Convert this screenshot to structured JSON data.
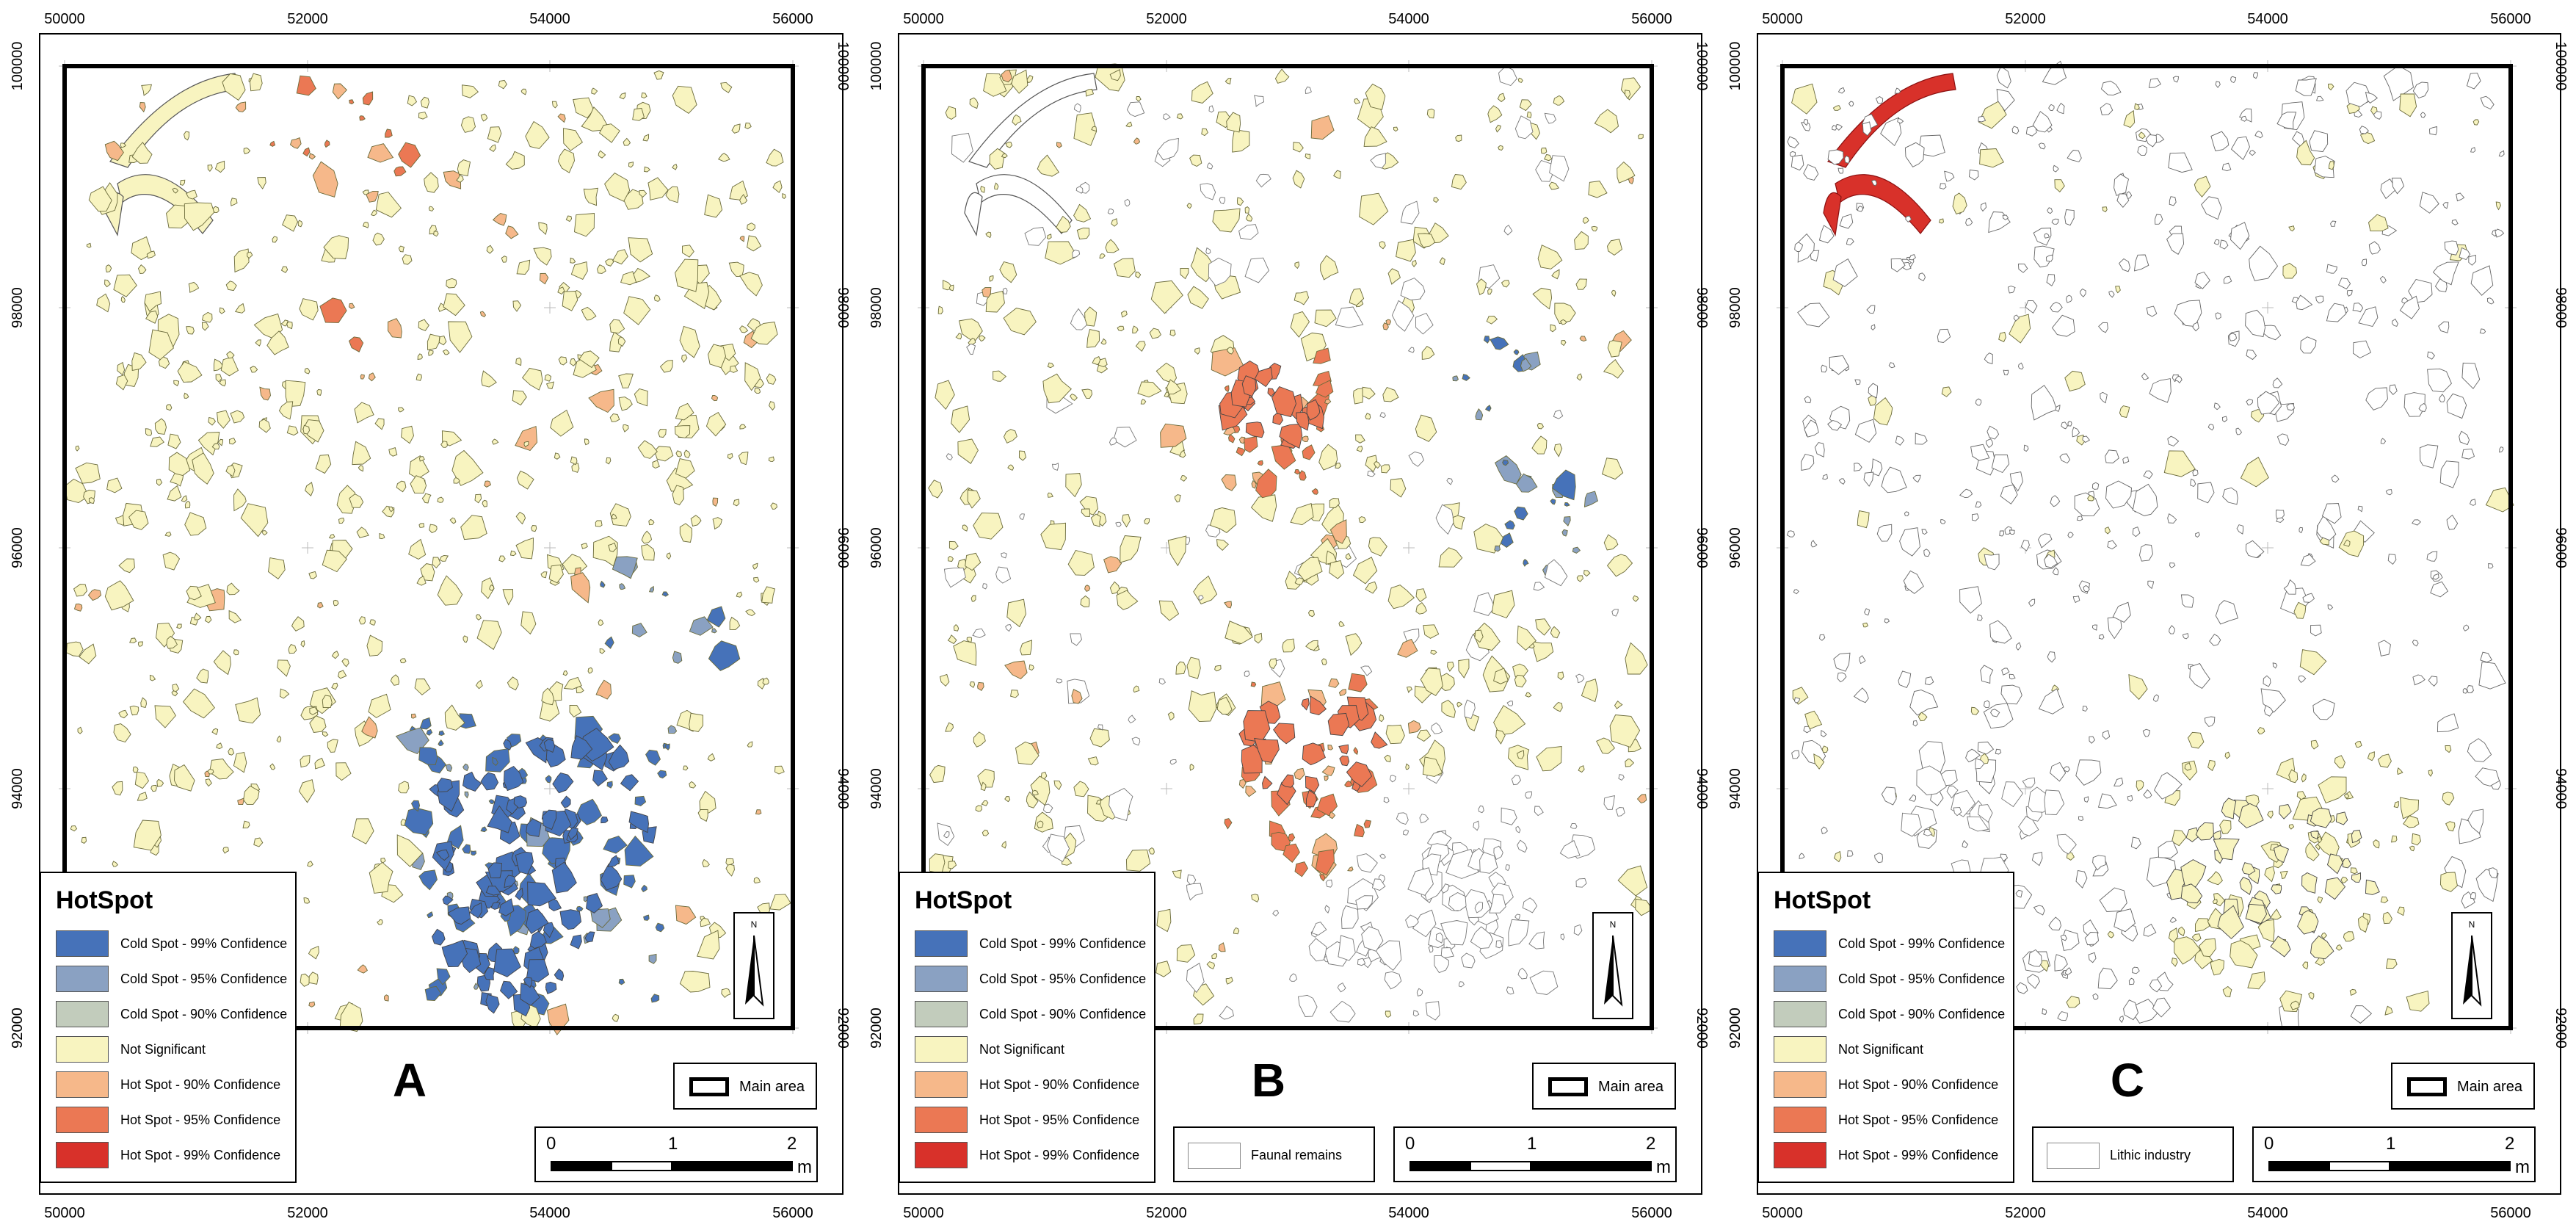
{
  "axis": {
    "x_ticks": [
      "50000",
      "52000",
      "54000",
      "56000"
    ],
    "y_ticks": [
      "100000",
      "98000",
      "96000",
      "94000",
      "92000"
    ]
  },
  "legend": {
    "title": "HotSpot",
    "items": [
      {
        "label": "Cold Spot - 99% Confidence",
        "color": "#4672b9"
      },
      {
        "label": "Cold Spot - 95% Confidence",
        "color": "#8aa1c2"
      },
      {
        "label": "Cold Spot - 90% Confidence",
        "color": "#c2ccbc"
      },
      {
        "label": "Not Significant",
        "color": "#f8f4c0"
      },
      {
        "label": "Hot Spot - 90% Confidence",
        "color": "#f6b88a"
      },
      {
        "label": "Hot Spot - 95% Confidence",
        "color": "#eb7854"
      },
      {
        "label": "Hot Spot - 99% Confidence",
        "color": "#d8312a"
      }
    ]
  },
  "main_area_label": "Main area",
  "north_label": "N",
  "scale": {
    "ticks": [
      "0",
      "1",
      "2"
    ],
    "unit": "m"
  },
  "panels": [
    {
      "letter": "A",
      "extra_legend": ""
    },
    {
      "letter": "B",
      "extra_legend": "Faunal remains"
    },
    {
      "letter": "C",
      "extra_legend": "Lithic industry"
    }
  ]
}
